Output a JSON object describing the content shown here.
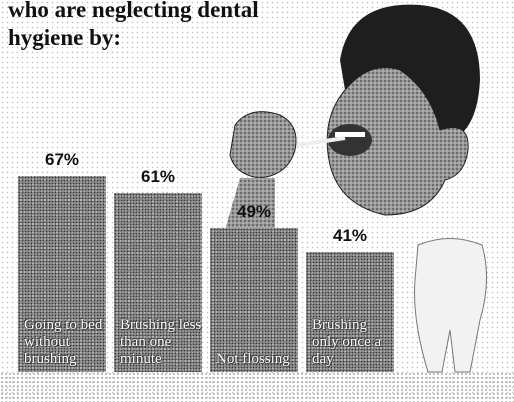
{
  "chart_data": {
    "type": "bar",
    "title": "who are neglecting dental hygiene by:",
    "categories": [
      "Going to bed without brushing",
      "Brushing less than one minute",
      "Not flossing",
      "Brushing only once a day"
    ],
    "values": [
      67,
      61,
      49,
      41
    ],
    "value_labels": [
      "67%",
      "61%",
      "49%",
      "41%"
    ],
    "color": "#8e8e8e"
  }
}
